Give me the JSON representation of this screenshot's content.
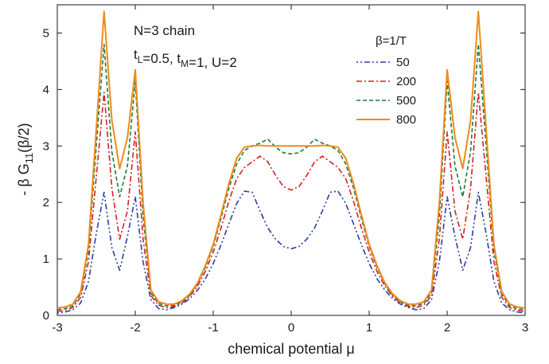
{
  "chart_data": {
    "type": "line",
    "xlabel": "chemical potential μ",
    "ylabel": "- β G₁₁(β/2)",
    "xlim": [
      -3,
      3
    ],
    "ylim": [
      0,
      5.5
    ],
    "xticks": [
      "-3",
      "-2",
      "-1",
      "0",
      "1",
      "2",
      "3"
    ],
    "yticks": [
      "0",
      "1",
      "2",
      "3",
      "4",
      "5"
    ],
    "annotations": {
      "line1": "N=3 chain",
      "line2": "t_L=0.5, t_M=1, U=2"
    },
    "legend_title": "β=1/T",
    "legend_position": "top-right",
    "x": [
      -3.0,
      -2.9,
      -2.8,
      -2.7,
      -2.6,
      -2.5,
      -2.4,
      -2.3,
      -2.2,
      -2.1,
      -2.0,
      -1.9,
      -1.8,
      -1.7,
      -1.6,
      -1.5,
      -1.4,
      -1.3,
      -1.2,
      -1.1,
      -1.0,
      -0.9,
      -0.8,
      -0.7,
      -0.6,
      -0.5,
      -0.4,
      -0.3,
      -0.2,
      -0.1,
      0.0,
      0.1,
      0.2,
      0.3,
      0.4,
      0.5,
      0.6,
      0.7,
      0.8,
      0.9,
      1.0,
      1.1,
      1.2,
      1.3,
      1.4,
      1.5,
      1.6,
      1.7,
      1.8,
      1.9,
      2.0,
      2.1,
      2.2,
      2.3,
      2.4,
      2.5,
      2.6,
      2.7,
      2.8,
      2.9,
      3.0
    ],
    "series": [
      {
        "name": "50",
        "color": "#2a3f9e",
        "dash": "2,3,2,3,7,3",
        "values": [
          0.04,
          0.06,
          0.1,
          0.22,
          0.6,
          1.45,
          2.18,
          1.2,
          0.8,
          1.4,
          2.1,
          0.95,
          0.28,
          0.12,
          0.1,
          0.14,
          0.2,
          0.3,
          0.45,
          0.65,
          0.92,
          1.25,
          1.62,
          1.98,
          2.2,
          2.18,
          1.85,
          1.55,
          1.35,
          1.22,
          1.18,
          1.22,
          1.35,
          1.55,
          1.85,
          2.18,
          2.2,
          1.98,
          1.62,
          1.25,
          0.92,
          0.65,
          0.45,
          0.3,
          0.2,
          0.14,
          0.1,
          0.12,
          0.28,
          0.95,
          2.1,
          1.4,
          0.8,
          1.2,
          2.18,
          1.45,
          0.6,
          0.22,
          0.1,
          0.06,
          0.04
        ]
      },
      {
        "name": "200",
        "color": "#d62020",
        "dash": "7,3,2,3",
        "values": [
          0.07,
          0.09,
          0.14,
          0.32,
          0.95,
          2.45,
          3.95,
          2.25,
          1.35,
          1.85,
          3.25,
          1.35,
          0.35,
          0.18,
          0.14,
          0.16,
          0.22,
          0.34,
          0.52,
          0.78,
          1.12,
          1.55,
          2.02,
          2.42,
          2.62,
          2.72,
          2.82,
          2.72,
          2.48,
          2.28,
          2.22,
          2.28,
          2.48,
          2.72,
          2.82,
          2.72,
          2.62,
          2.42,
          2.02,
          1.55,
          1.12,
          0.78,
          0.52,
          0.34,
          0.22,
          0.16,
          0.14,
          0.18,
          0.35,
          1.35,
          3.25,
          1.85,
          1.35,
          2.25,
          3.95,
          2.45,
          0.95,
          0.32,
          0.14,
          0.09,
          0.07
        ]
      },
      {
        "name": "500",
        "color": "#1e7a3a",
        "dash": "5,3",
        "values": [
          0.1,
          0.12,
          0.17,
          0.38,
          1.15,
          3.0,
          4.8,
          2.9,
          2.1,
          2.65,
          4.15,
          1.75,
          0.4,
          0.21,
          0.17,
          0.18,
          0.24,
          0.36,
          0.56,
          0.85,
          1.22,
          1.72,
          2.25,
          2.68,
          2.92,
          3.0,
          3.05,
          3.12,
          2.98,
          2.88,
          2.86,
          2.88,
          2.98,
          3.12,
          3.05,
          3.0,
          2.92,
          2.68,
          2.25,
          1.72,
          1.22,
          0.85,
          0.56,
          0.36,
          0.24,
          0.18,
          0.17,
          0.21,
          0.4,
          1.75,
          4.15,
          2.65,
          2.1,
          2.9,
          4.8,
          3.0,
          1.15,
          0.38,
          0.17,
          0.12,
          0.1
        ]
      },
      {
        "name": "800",
        "color": "#f08a1c",
        "dash": "",
        "values": [
          0.13,
          0.15,
          0.2,
          0.42,
          1.25,
          3.3,
          5.38,
          3.45,
          2.6,
          3.15,
          4.35,
          2.0,
          0.45,
          0.24,
          0.2,
          0.2,
          0.26,
          0.38,
          0.58,
          0.88,
          1.26,
          1.78,
          2.33,
          2.78,
          2.98,
          3.0,
          3.01,
          3.0,
          3.0,
          3.0,
          3.0,
          3.0,
          3.0,
          3.0,
          3.01,
          3.0,
          2.98,
          2.78,
          2.33,
          1.78,
          1.26,
          0.88,
          0.58,
          0.38,
          0.26,
          0.2,
          0.2,
          0.24,
          0.45,
          2.0,
          4.35,
          3.15,
          2.6,
          3.45,
          5.38,
          3.3,
          1.25,
          0.42,
          0.2,
          0.15,
          0.13
        ]
      }
    ]
  }
}
